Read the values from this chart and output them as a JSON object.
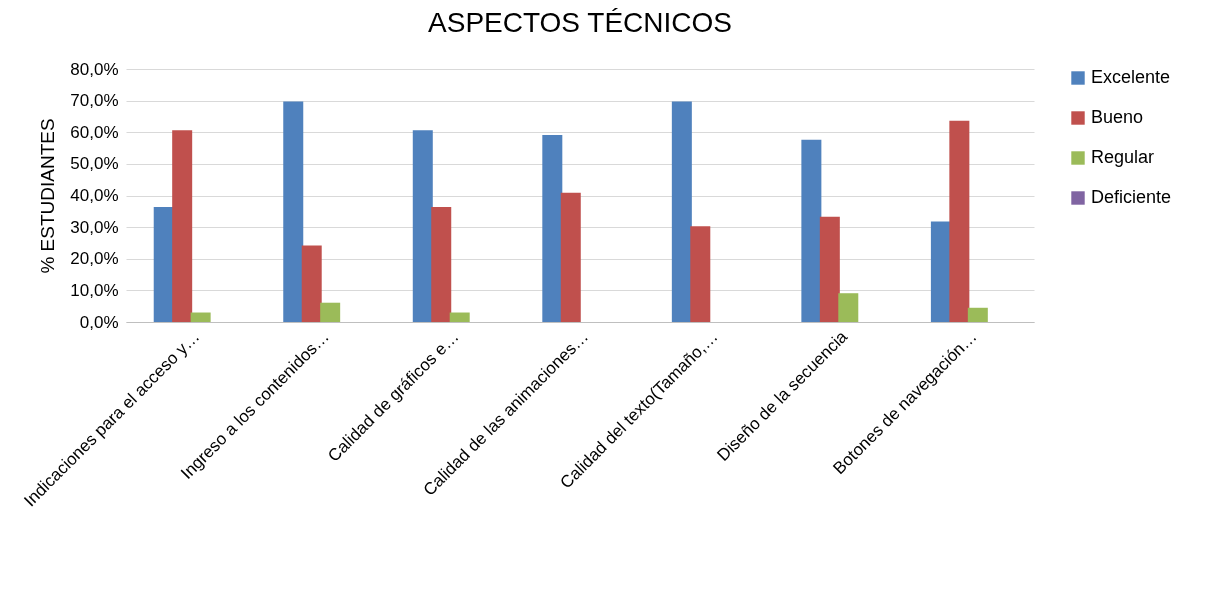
{
  "chart_data": {
    "type": "bar",
    "title": "ASPECTOS TÉCNICOS",
    "ylabel": "% ESTUDIANTES",
    "categories": [
      "Indicaciones para el acceso y…",
      "Ingreso a los contenidos…",
      "Calidad de gráficos e…",
      "Calidad de las animaciones…",
      "Calidad del texto(Tamaño,…",
      "Diseño de la secuencia",
      "Botones de navegación…"
    ],
    "series": [
      {
        "name": "Excelente",
        "color": "#4f81bd",
        "values": [
          36.4,
          69.7,
          60.6,
          59.1,
          69.7,
          57.6,
          31.8
        ]
      },
      {
        "name": "Bueno",
        "color": "#c0504d",
        "values": [
          60.6,
          24.2,
          36.4,
          40.9,
          30.3,
          33.3,
          63.6
        ]
      },
      {
        "name": "Regular",
        "color": "#9bbb59",
        "values": [
          3.0,
          6.1,
          3.0,
          0,
          0,
          9.1,
          4.5
        ]
      },
      {
        "name": "Deficiente",
        "color": "#8064a2",
        "values": [
          0,
          0,
          0,
          0,
          0,
          0,
          0
        ]
      }
    ],
    "ylim": [
      0,
      80
    ],
    "yticks": [
      {
        "value": 0,
        "label": "0,0%"
      },
      {
        "value": 10,
        "label": "10,0%"
      },
      {
        "value": 20,
        "label": "20,0%"
      },
      {
        "value": 30,
        "label": "30,0%"
      },
      {
        "value": 40,
        "label": "40,0%"
      },
      {
        "value": 50,
        "label": "50,0%"
      },
      {
        "value": 60,
        "label": "60,0%"
      },
      {
        "value": 70,
        "label": "70,0%"
      },
      {
        "value": 80,
        "label": "80,0%"
      }
    ],
    "grid": "y",
    "legend": "right"
  }
}
